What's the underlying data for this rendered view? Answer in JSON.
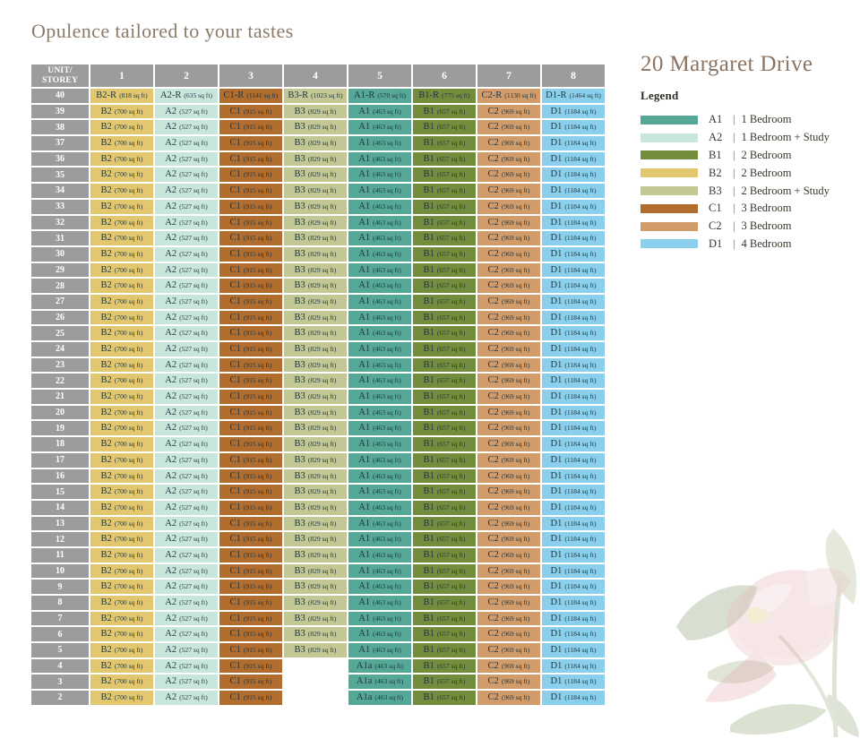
{
  "page_title": "Opulence tailored to your tastes",
  "project_name": "20 Margaret Drive",
  "colors": {
    "title": "#8b7a68",
    "project": "#8c7460",
    "header_bg": "#9c9c9c",
    "cell_text": "#1e3440",
    "legend_text": "#3a362d"
  },
  "legend": {
    "heading": "Legend",
    "separator": "|",
    "items": [
      {
        "code": "A1",
        "name": "1 Bedroom",
        "color": "#55a796"
      },
      {
        "code": "A2",
        "name": "1 Bedroom + Study",
        "color": "#c9e6db"
      },
      {
        "code": "B1",
        "name": "2 Bedroom",
        "color": "#748d3d"
      },
      {
        "code": "B2",
        "name": "2 Bedroom",
        "color": "#e2c76e"
      },
      {
        "code": "B3",
        "name": "2 Bedroom + Study",
        "color": "#c2c794"
      },
      {
        "code": "C1",
        "name": "3 Bedroom",
        "color": "#b06d2e"
      },
      {
        "code": "C2",
        "name": "3 Bedroom",
        "color": "#d19c6a"
      },
      {
        "code": "D1",
        "name": "4 Bedroom",
        "color": "#8ad0ec"
      }
    ]
  },
  "table": {
    "corner_label_top": "UNIT/",
    "corner_label_bottom": "STOREY",
    "column_headers": [
      "1",
      "2",
      "3",
      "4",
      "5",
      "6",
      "7",
      "8"
    ],
    "row_groups": [
      {
        "storeys": [
          "40"
        ],
        "cells": [
          {
            "code": "B2-R",
            "area": "(818 sq ft)",
            "type": "B2"
          },
          {
            "code": "A2-R",
            "area": "(635 sq ft)",
            "type": "A2"
          },
          {
            "code": "C1-R",
            "area": "(1141 sq ft)",
            "type": "C1"
          },
          {
            "code": "B3-R",
            "area": "(1023 sq ft)",
            "type": "B3"
          },
          {
            "code": "A1-R",
            "area": "(570 sq ft)",
            "type": "A1"
          },
          {
            "code": "B1-R",
            "area": "(775 sq ft)",
            "type": "B1"
          },
          {
            "code": "C2-R",
            "area": "(1130 sq ft)",
            "type": "C2"
          },
          {
            "code": "D1-R",
            "area": "(1464 sq ft)",
            "type": "D1"
          }
        ]
      },
      {
        "storeys": [
          "39",
          "38",
          "37",
          "36",
          "35",
          "34",
          "33",
          "32",
          "31",
          "30",
          "29",
          "28",
          "27",
          "26",
          "25",
          "24",
          "23",
          "22",
          "21",
          "20",
          "19",
          "18",
          "17",
          "16",
          "15",
          "14",
          "13",
          "12",
          "11",
          "10",
          "9",
          "8",
          "7",
          "6",
          "5"
        ],
        "cells": [
          {
            "code": "B2",
            "area": "(700 sq ft)",
            "type": "B2"
          },
          {
            "code": "A2",
            "area": "(527 sq ft)",
            "type": "A2"
          },
          {
            "code": "C1",
            "area": "(915 sq ft)",
            "type": "C1"
          },
          {
            "code": "B3",
            "area": "(829 sq ft)",
            "type": "B3"
          },
          {
            "code": "A1",
            "area": "(463 sq ft)",
            "type": "A1"
          },
          {
            "code": "B1",
            "area": "(657 sq ft)",
            "type": "B1"
          },
          {
            "code": "C2",
            "area": "(969 sq ft)",
            "type": "C2"
          },
          {
            "code": "D1",
            "area": "(1184 sq ft)",
            "type": "D1"
          }
        ]
      },
      {
        "storeys": [
          "4",
          "3",
          "2"
        ],
        "cells": [
          {
            "code": "B2",
            "area": "(700 sq ft)",
            "type": "B2"
          },
          {
            "code": "A2",
            "area": "(527 sq ft)",
            "type": "A2"
          },
          {
            "code": "C1",
            "area": "(915 sq ft)",
            "type": "C1"
          },
          null,
          {
            "code": "A1a",
            "area": "(463 sq ft)",
            "type": "A1"
          },
          {
            "code": "B1",
            "area": "(657 sq ft)",
            "type": "B1"
          },
          {
            "code": "C2",
            "area": "(969 sq ft)",
            "type": "C2"
          },
          {
            "code": "D1",
            "area": "(1184 sq ft)",
            "type": "D1"
          }
        ]
      }
    ]
  }
}
